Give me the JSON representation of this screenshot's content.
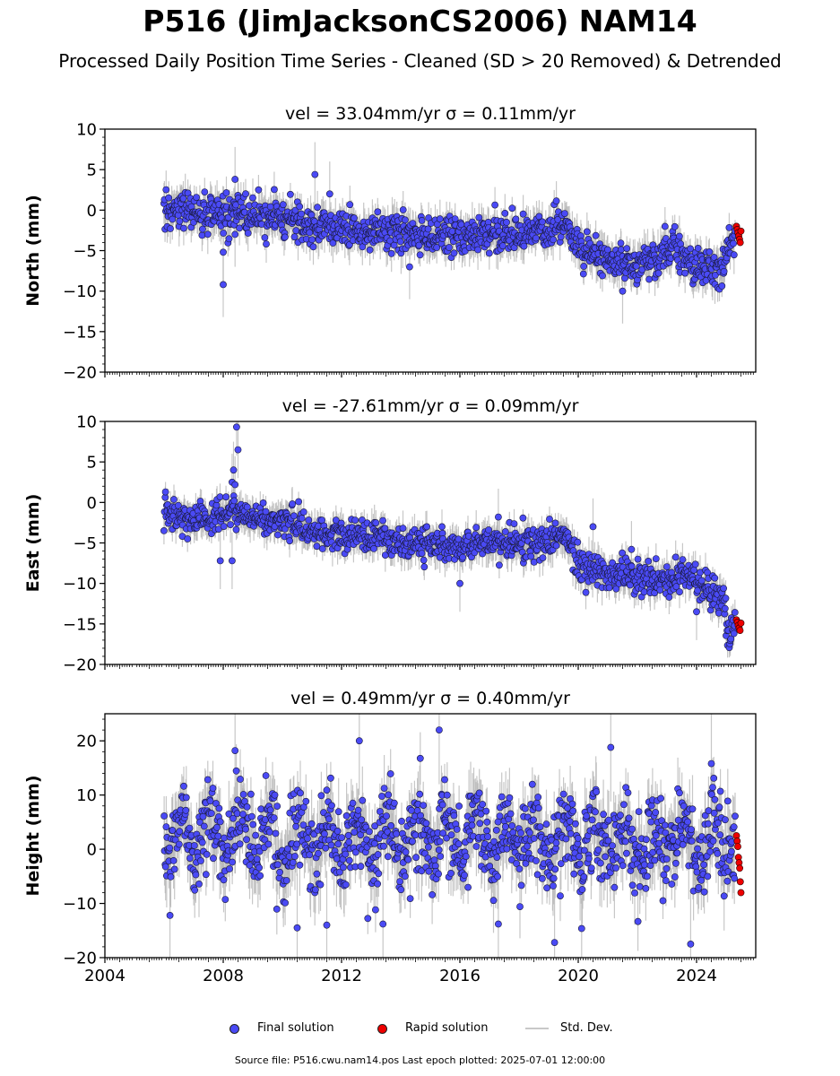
{
  "title": "P516 (JimJacksonCS2006) NAM14",
  "subtitle": "Processed Daily Position Time Series - Cleaned (SD > 20 Removed) & Detrended",
  "footer": "Source file: P516.cwu.nam14.pos  Last epoch plotted: 2025-07-01 12:00:00",
  "colors": {
    "final": "#4a4af5",
    "rapid": "#ee0000",
    "stddev": "#b4b4b4"
  },
  "legend": {
    "final": "Final solution",
    "rapid": "Rapid solution",
    "stddev": "Std. Dev."
  },
  "chart_data": [
    {
      "type": "scatter",
      "title": "vel = 33.04mm/yr   σ = 0.11mm/yr",
      "ylabel": "North (mm)",
      "xlim": [
        2004,
        2026
      ],
      "ylim": [
        -20,
        10
      ],
      "yticks": [
        -20,
        -15,
        -10,
        -5,
        0,
        5,
        10
      ],
      "xticks": [
        2004,
        2008,
        2012,
        2016,
        2020,
        2024
      ],
      "start_year": 2006.0,
      "final_end_year": 2025.3,
      "rapid_range": [
        2025.35,
        2025.5
      ],
      "trend": [
        [
          2006,
          0
        ],
        [
          2008,
          -0.5
        ],
        [
          2010.5,
          -1.5
        ],
        [
          2012,
          -2.5
        ],
        [
          2016,
          -3.0
        ],
        [
          2018,
          -2.8
        ],
        [
          2019,
          -2.5
        ],
        [
          2019.5,
          -1.0
        ],
        [
          2020,
          -5.0
        ],
        [
          2021,
          -6.0
        ],
        [
          2022,
          -6.8
        ],
        [
          2022.5,
          -6.2
        ],
        [
          2023,
          -4.5
        ],
        [
          2023.5,
          -6.0
        ],
        [
          2024,
          -7.0
        ],
        [
          2024.8,
          -7.2
        ],
        [
          2025.3,
          -2.5
        ]
      ],
      "scatter_sd": 1.2,
      "errorbar": 1.6,
      "outliers": [
        [
          2008.0,
          -9.2
        ],
        [
          2008.0,
          -5.2
        ],
        [
          2008.4,
          3.8
        ],
        [
          2011.1,
          4.4
        ],
        [
          2011.6,
          2.0
        ],
        [
          2008.4,
          -3.0
        ],
        [
          2014.3,
          -7.0
        ],
        [
          2021.5,
          -10.0
        ]
      ],
      "rapid_values": [
        -2.0,
        -2.4,
        -2.8,
        -3.2,
        -3.6,
        -4.0,
        -2.6
      ]
    },
    {
      "type": "scatter",
      "title": "vel = -27.61mm/yr   σ = 0.09mm/yr",
      "ylabel": "East (mm)",
      "xlim": [
        2004,
        2026
      ],
      "ylim": [
        -20,
        10
      ],
      "yticks": [
        -20,
        -15,
        -10,
        -5,
        0,
        5,
        10
      ],
      "xticks": [
        2004,
        2008,
        2012,
        2016,
        2020,
        2024
      ],
      "start_year": 2006.0,
      "final_end_year": 2025.3,
      "rapid_range": [
        2025.35,
        2025.5
      ],
      "trend": [
        [
          2006,
          -1.5
        ],
        [
          2007.5,
          -2.5
        ],
        [
          2008.3,
          -0.5
        ],
        [
          2009,
          -2.0
        ],
        [
          2010.5,
          -2.5
        ],
        [
          2011.5,
          -4.0
        ],
        [
          2013,
          -4.5
        ],
        [
          2016,
          -5.5
        ],
        [
          2017,
          -5.0
        ],
        [
          2019,
          -5.0
        ],
        [
          2019.5,
          -3.5
        ],
        [
          2020,
          -7.5
        ],
        [
          2021,
          -9.0
        ],
        [
          2022,
          -9.0
        ],
        [
          2023,
          -10.0
        ],
        [
          2023.5,
          -9.0
        ],
        [
          2024.5,
          -10.5
        ],
        [
          2024.9,
          -12.0
        ],
        [
          2025.1,
          -16.0
        ],
        [
          2025.3,
          -15.0
        ]
      ],
      "scatter_sd": 1.0,
      "errorbar": 1.4,
      "outliers": [
        [
          2008.45,
          9.3
        ],
        [
          2008.5,
          6.5
        ],
        [
          2008.35,
          4.0
        ],
        [
          2008.3,
          2.5
        ],
        [
          2008.4,
          2.2
        ],
        [
          2007.9,
          -7.2
        ],
        [
          2008.3,
          -7.2
        ],
        [
          2017.3,
          -1.8
        ],
        [
          2020.5,
          -3.0
        ],
        [
          2016.0,
          -10.0
        ],
        [
          2024.0,
          -13.5
        ],
        [
          2021.8,
          -5.8
        ]
      ],
      "rapid_values": [
        -14.5,
        -14.8,
        -15.2,
        -15.5,
        -15.8,
        -14.9
      ]
    },
    {
      "type": "scatter",
      "title": "vel = 0.49mm/yr   σ = 0.40mm/yr",
      "ylabel": "Height (mm)",
      "xlim": [
        2004,
        2026
      ],
      "ylim": [
        -20,
        25
      ],
      "yticks": [
        -20,
        -10,
        0,
        10,
        20
      ],
      "xticks": [
        2004,
        2008,
        2012,
        2016,
        2020,
        2024
      ],
      "xticklabels": [
        "2004",
        "2008",
        "2012",
        "2016",
        "2020",
        "2024"
      ],
      "start_year": 2006.0,
      "final_end_year": 2025.3,
      "rapid_range": [
        2025.35,
        2025.5
      ],
      "trend": [
        [
          2006,
          2
        ],
        [
          2025.3,
          1
        ]
      ],
      "seasonal_amp": 4.0,
      "scatter_sd": 4.0,
      "errorbar": 4.0,
      "outliers": [
        [
          2015.3,
          22.0
        ],
        [
          2012.6,
          20.0
        ],
        [
          2021.1,
          18.8
        ],
        [
          2019.2,
          -17.2
        ],
        [
          2023.8,
          -17.5
        ],
        [
          2010.5,
          -14.5
        ],
        [
          2011.5,
          -14.0
        ],
        [
          2013.4,
          -13.8
        ],
        [
          2017.3,
          -13.8
        ],
        [
          2006.2,
          -12.2
        ],
        [
          2024.5,
          15.8
        ],
        [
          2008.4,
          18.2
        ]
      ],
      "rapid_values": [
        2.5,
        1.5,
        0.5,
        -1.5,
        -2.5,
        -3.5,
        -6.0,
        -8.0
      ]
    }
  ]
}
